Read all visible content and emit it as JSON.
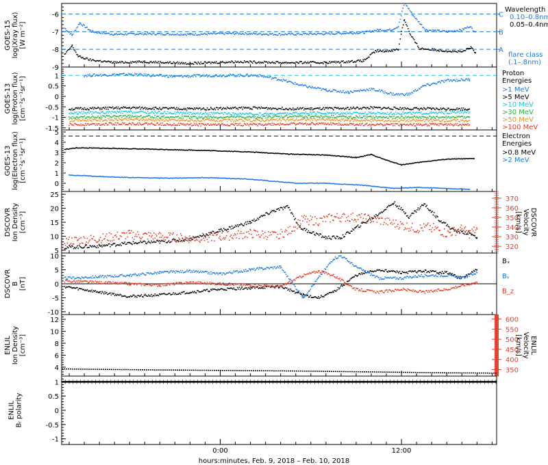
{
  "colors": {
    "black": "#000000",
    "blue": "#1e78e6",
    "cyan": "#16c8e6",
    "green": "#2ab04a",
    "yellow": "#c8c800",
    "orange": "#e6961e",
    "red": "#e63c28"
  },
  "xaxis": {
    "label": "hours:minutes, Feb.  9, 2018 – Feb. 10, 2018",
    "range_hours": [
      -10.5,
      18.3
    ],
    "ticks": [
      {
        "h": 0,
        "label": "0:00"
      },
      {
        "h": 12,
        "label": "12:00"
      }
    ]
  },
  "chart_data": [
    {
      "type": "line",
      "ylabel": [
        "GOES-15",
        "log(Xray flux)",
        "[W m⁻²]"
      ],
      "ylim": [
        -9.0,
        -5.4
      ],
      "yticks": [
        -9,
        -8,
        -7,
        -6
      ],
      "legend": {
        "title": "Wavelength",
        "items": [
          {
            "text": "0.10–0.8nm",
            "color": "blue"
          },
          {
            "text": "0.05–0.4nm",
            "color": "black"
          }
        ]
      },
      "flare_classes": [
        {
          "label": "C",
          "value": -6
        },
        {
          "label": "B",
          "value": -7
        },
        {
          "label": "A",
          "value": -8
        }
      ],
      "flare_note": [
        "flare class",
        "(.1–.8nm)"
      ],
      "series": [
        {
          "name": "0.10–0.8nm",
          "color": "blue",
          "x": [
            -10.3,
            -9.8,
            -9.3,
            -8.5,
            -7.0,
            -5.0,
            -2.0,
            1.0,
            4.0,
            7.0,
            9.5,
            10.5,
            11.3,
            11.8,
            12.2,
            12.8,
            13.6,
            15.0,
            16.0,
            16.5,
            16.9
          ],
          "y": [
            -6.8,
            -7.2,
            -6.5,
            -7.0,
            -7.15,
            -7.12,
            -7.15,
            -7.1,
            -7.15,
            -7.12,
            -7.05,
            -6.9,
            -6.9,
            -6.7,
            -5.35,
            -6.1,
            -6.9,
            -7.0,
            -6.9,
            -6.7,
            -7.0
          ]
        },
        {
          "name": "0.05–0.4nm",
          "color": "black",
          "x": [
            -10.3,
            -9.8,
            -9.4,
            -8.6,
            -7.0,
            -5.0,
            -2.0,
            1.0,
            4.0,
            7.0,
            9.5,
            10.3,
            11.0,
            11.8,
            12.0,
            12.2,
            12.6,
            13.2,
            14.5,
            16.0,
            16.6,
            16.9
          ],
          "y": [
            -8.3,
            -7.8,
            -8.4,
            -8.6,
            -8.75,
            -8.7,
            -8.8,
            -8.7,
            -8.75,
            -8.75,
            -8.65,
            -8.1,
            -8.1,
            -8.0,
            -7.0,
            -6.3,
            -7.2,
            -7.95,
            -8.05,
            -8.15,
            -7.9,
            -8.2
          ]
        }
      ]
    },
    {
      "type": "scatter",
      "ylabel": [
        "GOES-13",
        "log(Proton flux)",
        "[cm⁻²s⁻¹sr⁻¹]"
      ],
      "ylim": [
        -1.6,
        1.4
      ],
      "yticks": [
        -1.5,
        -1.0,
        -0.5,
        0.0,
        0.5,
        1.0
      ],
      "ref_line": 1.0,
      "legend": {
        "title": "Proton Energies",
        "items": [
          {
            "text": ">1 MeV",
            "color": "blue"
          },
          {
            "text": ">5 MeV",
            "color": "black"
          },
          {
            "text": ">10 MeV",
            "color": "cyan"
          },
          {
            "text": ">30 MeV",
            "color": "green"
          },
          {
            "text": ">50 MeV",
            "color": "orange"
          },
          {
            "text": ">100 MeV",
            "color": "red"
          }
        ]
      },
      "series": [
        {
          "name": ">1 MeV",
          "color": "blue",
          "x": [
            -9.0,
            -6.0,
            -3.0,
            0.0,
            2.5,
            4.0,
            5.5,
            7.0,
            8.5,
            10.0,
            11.5,
            12.5,
            13.5,
            15.0,
            16.5
          ],
          "y": [
            1.0,
            1.05,
            0.95,
            1.0,
            1.0,
            0.8,
            0.5,
            0.3,
            0.2,
            0.35,
            0.1,
            0.1,
            0.5,
            0.75,
            0.8
          ]
        },
        {
          "name": ">5 MeV",
          "color": "black",
          "x": [
            -10.0,
            -6.0,
            -2.0,
            2.0,
            6.0,
            10.0,
            14.0,
            16.5
          ],
          "y": [
            -0.6,
            -0.55,
            -0.6,
            -0.55,
            -0.6,
            -0.55,
            -0.6,
            -0.6
          ]
        },
        {
          "name": ">10 MeV",
          "color": "cyan",
          "x": [
            -10.0,
            -6.0,
            -2.0,
            2.0,
            6.0,
            10.0,
            14.0,
            16.5
          ],
          "y": [
            -0.8,
            -0.75,
            -0.8,
            -0.85,
            -0.8,
            -0.8,
            -0.8,
            -0.75
          ]
        },
        {
          "name": ">30 MeV",
          "color": "green",
          "x": [
            -10.0,
            -6.0,
            -2.0,
            2.0,
            6.0,
            10.0,
            14.0,
            16.5
          ],
          "y": [
            -1.0,
            -0.95,
            -1.0,
            -1.0,
            -0.95,
            -1.0,
            -1.0,
            -1.0
          ]
        },
        {
          "name": ">50 MeV",
          "color": "orange",
          "x": [
            -10.0,
            -6.0,
            -2.0,
            2.0,
            6.0,
            10.0,
            14.0,
            16.5
          ],
          "y": [
            -1.15,
            -1.1,
            -1.15,
            -1.15,
            -1.1,
            -1.15,
            -1.15,
            -1.15
          ]
        },
        {
          "name": ">100 MeV",
          "color": "red",
          "x": [
            -10.0,
            -6.0,
            -2.0,
            2.0,
            6.0,
            10.0,
            14.0,
            16.5
          ],
          "y": [
            -1.35,
            -1.3,
            -1.35,
            -1.35,
            -1.3,
            -1.35,
            -1.35,
            -1.35
          ]
        }
      ]
    },
    {
      "type": "line",
      "ylabel": [
        "GOES-13",
        "log(Electron flux)",
        "[cm⁻²s⁻¹sr⁻¹]"
      ],
      "ylim": [
        -0.8,
        5.2
      ],
      "yticks": [
        0,
        1,
        2,
        3,
        4,
        5
      ],
      "ref_line": 4.6,
      "legend": {
        "title": "Electron Energies",
        "items": [
          {
            "text": ">0.8 MeV",
            "color": "black"
          },
          {
            "text": ">2 MeV",
            "color": "blue"
          }
        ]
      },
      "series": [
        {
          "name": ">0.8 MeV",
          "color": "black",
          "x": [
            -10.3,
            -9.5,
            -7.0,
            -4.0,
            -1.0,
            2.0,
            4.5,
            7.0,
            9.0,
            10.0,
            11.0,
            12.0,
            13.5,
            15.0,
            16.8
          ],
          "y": [
            3.3,
            3.45,
            3.4,
            3.3,
            3.2,
            3.05,
            2.85,
            2.75,
            2.5,
            2.8,
            2.25,
            1.8,
            2.1,
            2.35,
            2.4
          ]
        },
        {
          "name": ">2 MeV",
          "color": "blue",
          "x": [
            -10.0,
            -7.0,
            -4.0,
            -1.0,
            2.0,
            3.5,
            5.0,
            7.0,
            9.5,
            11.5,
            13.0,
            15.0,
            16.5
          ],
          "y": [
            0.8,
            0.6,
            0.5,
            0.55,
            0.4,
            0.2,
            0.0,
            0.0,
            -0.2,
            -0.5,
            -0.4,
            -0.5,
            -0.6
          ]
        }
      ]
    },
    {
      "type": "line",
      "ylabel": [
        "DSCOVR",
        "Ion Density",
        "[cm⁻³]"
      ],
      "y2label": [
        "DSCOVR",
        "Velocity",
        "[km/s]"
      ],
      "ylim": [
        4,
        26
      ],
      "yticks": [
        5,
        10,
        15,
        20,
        25
      ],
      "y2lim": [
        313,
        377
      ],
      "y2ticks": [
        320,
        330,
        340,
        350,
        360,
        370
      ],
      "series": [
        {
          "name": "Ion Density",
          "color": "black",
          "x": [
            -10.3,
            -8.0,
            -6.0,
            -4.0,
            -2.0,
            0.0,
            2.0,
            3.5,
            4.5,
            5.3,
            6.0,
            7.0,
            8.0,
            9.0,
            10.5,
            11.5,
            12.5,
            13.5,
            14.5,
            15.5,
            16.5,
            17.0
          ],
          "y": [
            6.0,
            6.5,
            7.5,
            8.0,
            9.0,
            12.0,
            15.0,
            19.0,
            20.5,
            13.0,
            11.5,
            9.5,
            9.5,
            13.0,
            18.0,
            22.0,
            17.0,
            21.5,
            16.0,
            12.0,
            11.0,
            9.5
          ]
        },
        {
          "name": "Velocity",
          "color": "red",
          "x": [
            -10.3,
            -8.0,
            -6.0,
            -4.0,
            -2.0,
            0.0,
            2.0,
            3.5,
            4.5,
            5.5,
            6.5,
            7.5,
            8.0,
            9.0,
            10.5,
            12.0,
            13.0,
            14.0,
            15.0,
            16.0,
            16.5,
            17.0
          ],
          "y": [
            325,
            328,
            332,
            330,
            328,
            330,
            333,
            331,
            335,
            348,
            346,
            350,
            350,
            350,
            347,
            342,
            338,
            340,
            333,
            338,
            333,
            338
          ]
        }
      ]
    },
    {
      "type": "line",
      "ylabel": [
        "DSCOVR",
        "B",
        "[nT]"
      ],
      "ylim": [
        -11,
        11
      ],
      "yticks": [
        -10,
        -5,
        0,
        5,
        10
      ],
      "legend": {
        "items": [
          {
            "text": "Bₓ",
            "color": "black"
          },
          {
            "text": "Bᵧ",
            "color": "blue"
          },
          {
            "text": "B_z",
            "color": "red"
          }
        ]
      },
      "series": [
        {
          "name": "Bₓ",
          "color": "black",
          "x": [
            -10.3,
            -8.0,
            -6.0,
            -4.0,
            -2.0,
            0.0,
            2.0,
            4.0,
            5.5,
            6.5,
            7.5,
            9.0,
            10.5,
            12.0,
            13.5,
            15.0,
            16.0,
            17.0
          ],
          "y": [
            -1.0,
            -3.0,
            -4.5,
            -4.0,
            -3.0,
            -2.0,
            -1.5,
            -1.0,
            -4.0,
            -5.0,
            -3.0,
            3.0,
            5.0,
            4.0,
            4.5,
            4.0,
            2.0,
            5.0
          ]
        },
        {
          "name": "Bᵧ",
          "color": "blue",
          "x": [
            -10.3,
            -8.0,
            -6.0,
            -4.0,
            -2.0,
            0.0,
            2.0,
            4.0,
            5.5,
            6.5,
            7.5,
            8.0,
            9.0,
            10.5,
            12.0,
            13.5,
            15.0,
            16.0,
            17.0
          ],
          "y": [
            2.0,
            2.5,
            3.0,
            4.0,
            4.5,
            3.5,
            5.0,
            6.0,
            -5.0,
            2.0,
            9.0,
            10.0,
            6.0,
            2.0,
            2.0,
            3.0,
            3.0,
            2.0,
            4.0
          ]
        },
        {
          "name": "B_z",
          "color": "red",
          "x": [
            -10.3,
            -8.0,
            -6.0,
            -4.0,
            -2.0,
            0.0,
            2.0,
            4.0,
            5.5,
            6.5,
            7.5,
            9.0,
            10.5,
            12.0,
            13.5,
            15.0,
            16.5,
            17.0
          ],
          "y": [
            1.0,
            0.5,
            0.0,
            -0.5,
            0.5,
            0.0,
            -0.5,
            -1.0,
            3.0,
            4.5,
            3.0,
            -2.0,
            -3.0,
            -2.0,
            -3.0,
            -2.0,
            0.0,
            0.5
          ]
        }
      ]
    },
    {
      "type": "line",
      "ylabel": [
        "ENLIL",
        "Ion Density",
        "[cm⁻³]"
      ],
      "y2label": [
        "ENLIL",
        "Velocity",
        "[km/s]"
      ],
      "ylim": [
        2.5,
        12.8
      ],
      "yticks": [
        4,
        6,
        8,
        10,
        12
      ],
      "y2lim": [
        318,
        622
      ],
      "y2ticks": [
        350,
        400,
        450,
        500,
        550,
        600
      ],
      "series": [
        {
          "name": "Ion Density",
          "color": "black",
          "x": [
            -10.5,
            -5.0,
            0.0,
            5.0,
            10.0,
            15.0,
            18.3
          ],
          "y": [
            3.7,
            3.55,
            3.45,
            3.35,
            3.2,
            3.05,
            3.0
          ]
        },
        {
          "name": "Velocity",
          "color": "red",
          "x": [
            -10.5,
            -5.0,
            0.0,
            5.0,
            10.0,
            15.0,
            18.3
          ],
          "y": [
            603,
            602,
            601,
            598,
            594,
            585,
            578
          ]
        }
      ]
    },
    {
      "type": "line",
      "ylabel": [
        "ENLIL",
        "Bᵣ polarity"
      ],
      "ylim": [
        -1.2,
        1.2
      ],
      "yticks": [
        -1.0,
        -0.5,
        0.0,
        0.5,
        1.0
      ],
      "series": [
        {
          "name": "Bᵣ polarity",
          "color": "black",
          "x": [
            -10.5,
            18.3
          ],
          "y": [
            1.0,
            1.0
          ]
        }
      ]
    }
  ]
}
